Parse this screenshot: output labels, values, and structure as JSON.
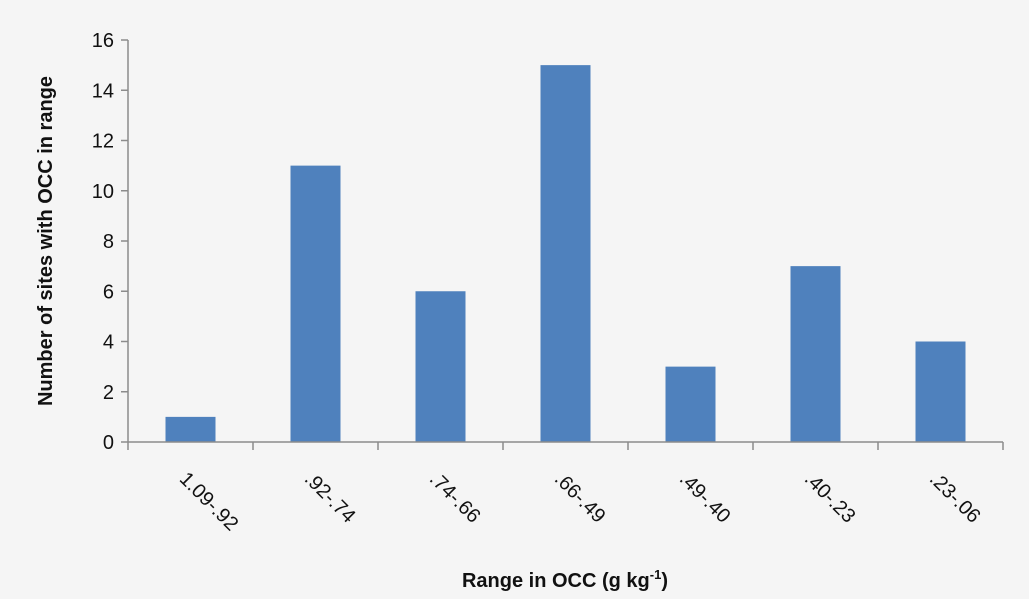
{
  "chart_data": {
    "type": "bar",
    "categories": [
      "1.09-.92",
      ".92-.74",
      ".74-.66",
      ".66-.49",
      ".49-.40",
      ".40-.23",
      ".23-.06"
    ],
    "values": [
      1,
      11,
      6,
      15,
      3,
      7,
      4
    ],
    "xlabel": "Range in OCC (g kg",
    "xlabel_superscript": "-1",
    "xlabel_suffix": ")",
    "ylabel": "Number of sites with OCC in range",
    "ylim": [
      0,
      16
    ],
    "yticks": [
      "0",
      "2",
      "4",
      "6",
      "8",
      "10",
      "12",
      "14",
      "16"
    ],
    "grid": false,
    "legend": "none",
    "bar_color": "#4f81bd",
    "axis_color": "#8c8c8c"
  }
}
